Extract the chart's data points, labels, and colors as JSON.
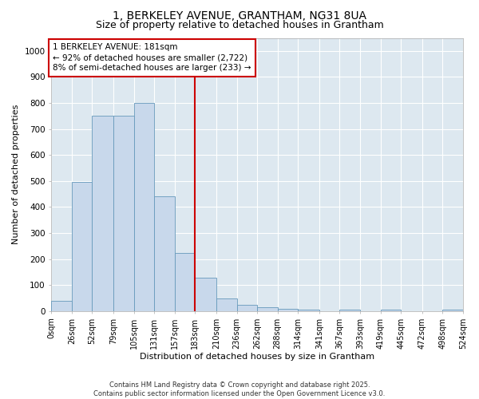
{
  "title": "1, BERKELEY AVENUE, GRANTHAM, NG31 8UA",
  "subtitle": "Size of property relative to detached houses in Grantham",
  "xlabel": "Distribution of detached houses by size in Grantham",
  "ylabel": "Number of detached properties",
  "bar_color": "#c8d8eb",
  "bar_edge_color": "#6699bb",
  "background_color": "#dde8f0",
  "grid_color": "#ffffff",
  "fig_background": "#ffffff",
  "vline_x": 183,
  "vline_color": "#cc0000",
  "annotation_line1": "1 BERKELEY AVENUE: 181sqm",
  "annotation_line2": "← 92% of detached houses are smaller (2,722)",
  "annotation_line3": "8% of semi-detached houses are larger (233) →",
  "annotation_box_color": "#cc0000",
  "bin_edges": [
    0,
    26,
    52,
    79,
    105,
    131,
    157,
    183,
    210,
    236,
    262,
    288,
    314,
    341,
    367,
    393,
    419,
    445,
    472,
    498,
    524
  ],
  "bin_labels": [
    "0sqm",
    "26sqm",
    "52sqm",
    "79sqm",
    "105sqm",
    "131sqm",
    "157sqm",
    "183sqm",
    "210sqm",
    "236sqm",
    "262sqm",
    "288sqm",
    "314sqm",
    "341sqm",
    "367sqm",
    "393sqm",
    "419sqm",
    "445sqm",
    "472sqm",
    "498sqm",
    "524sqm"
  ],
  "bar_heights": [
    40,
    495,
    750,
    750,
    800,
    440,
    225,
    130,
    50,
    25,
    15,
    10,
    5,
    0,
    5,
    0,
    5,
    0,
    0,
    5
  ],
  "ylim": [
    0,
    1050
  ],
  "yticks": [
    0,
    100,
    200,
    300,
    400,
    500,
    600,
    700,
    800,
    900,
    1000
  ],
  "footer_text": "Contains HM Land Registry data © Crown copyright and database right 2025.\nContains public sector information licensed under the Open Government Licence v3.0.",
  "title_fontsize": 10,
  "subtitle_fontsize": 9,
  "ylabel_fontsize": 8,
  "xlabel_fontsize": 8,
  "tick_fontsize": 7,
  "annot_fontsize": 7.5,
  "footer_fontsize": 6
}
